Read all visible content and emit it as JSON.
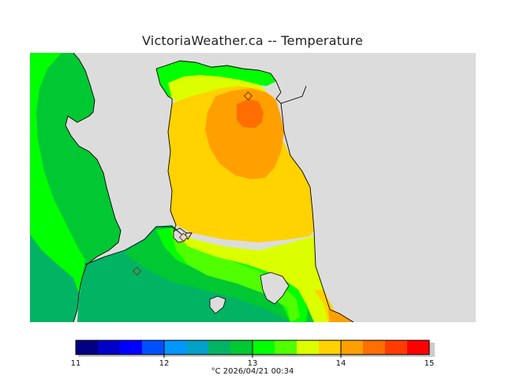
{
  "title": "VictoriaWeather.ca -- Temperature",
  "legend": {
    "min": 11,
    "max": 15,
    "ticks": [
      "11",
      "12",
      "13",
      "14",
      "15"
    ],
    "caption": "°C  2026/04/21 00:34",
    "colors": [
      "#000080",
      "#0000c8",
      "#0000ff",
      "#0050ff",
      "#0096ff",
      "#00a0c8",
      "#00b464",
      "#00c832",
      "#00ff00",
      "#50ff00",
      "#dcff00",
      "#ffd200",
      "#ffa000",
      "#ff6e00",
      "#ff3c00",
      "#ff0000"
    ]
  },
  "map": {
    "land_color": "#dcdcdc",
    "station_markers": 3
  }
}
